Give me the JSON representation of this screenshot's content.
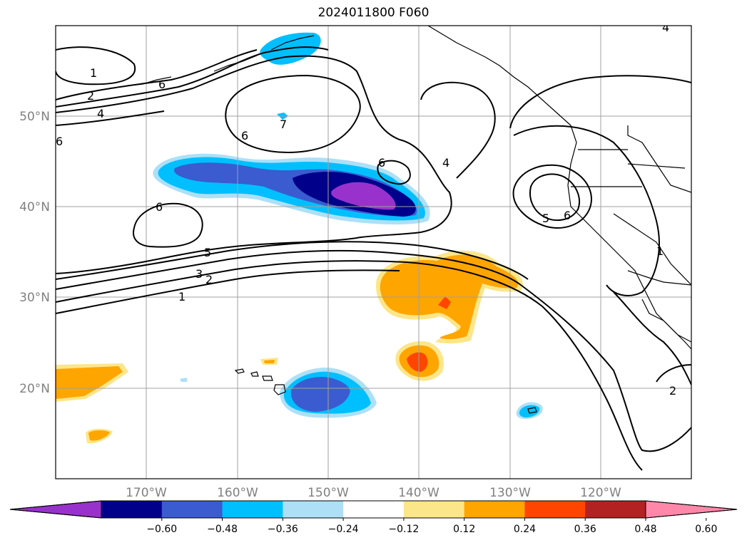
{
  "title": "2024011800 F060",
  "lat_labels": [
    "50°N",
    "40°N",
    "30°N",
    "20°N"
  ],
  "lon_labels": [
    "170°W",
    "160°W",
    "150°W",
    "140°W",
    "130°W",
    "120°W"
  ],
  "contour_labels": [
    "1",
    "2",
    "4",
    "6",
    "7",
    "6",
    "6",
    "4",
    "6",
    "5",
    "6",
    "5",
    "3",
    "2",
    "1",
    "1",
    "2",
    "6",
    "4"
  ],
  "colorbar": {
    "ticks": [
      "−0.60",
      "−0.48",
      "−0.36",
      "−0.24",
      "−0.12",
      "0.12",
      "0.24",
      "0.36",
      "0.48",
      "0.60"
    ],
    "colors": [
      "#9932CC",
      "#00008B",
      "#3B5BD0",
      "#00BFFF",
      "#ADE0F7",
      "#FFFFFF",
      "#FCE68A",
      "#FFA500",
      "#FF4500",
      "#B22222",
      "#FF88AA"
    ]
  },
  "colors": {
    "coast": "#000000",
    "grid": "#A0A0A0",
    "contour": "#000000"
  }
}
